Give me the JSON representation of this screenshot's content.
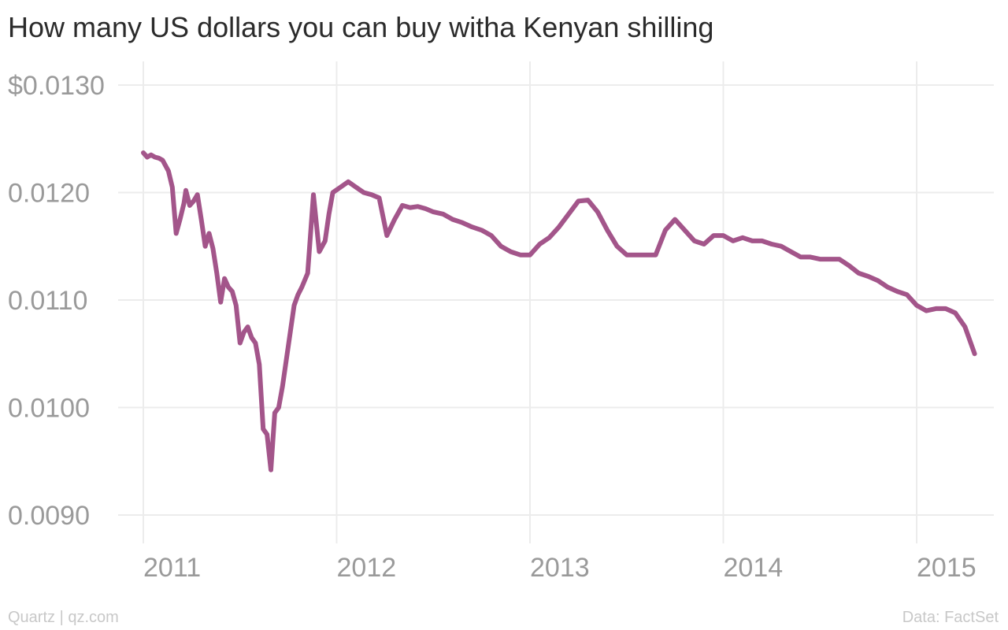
{
  "header": {
    "title": "How many US dollars you can buy witha Kenyan shilling"
  },
  "footer": {
    "source": "Quartz | qz.com",
    "data_credit": "Data: FactSet"
  },
  "colors": {
    "series": "#a3558a",
    "grid": "#ececec",
    "tick_text": "#9a9a9a"
  },
  "chart_data": {
    "type": "line",
    "title": "How many US dollars you can buy witha Kenyan shilling",
    "xlabel": "",
    "ylabel": "",
    "xlim": [
      2011.0,
      2015.3
    ],
    "ylim": [
      0.009,
      0.013
    ],
    "grid": true,
    "legend": "none",
    "y_ticks": [
      0.013,
      0.012,
      0.011,
      0.01,
      0.009
    ],
    "y_tick_labels": [
      "$0.0130",
      "0.0120",
      "0.0110",
      "0.0100",
      "0.0090"
    ],
    "x_ticks": [
      2011,
      2012,
      2013,
      2014,
      2015
    ],
    "x_tick_labels": [
      "2011",
      "2012",
      "2013",
      "2014",
      "2015"
    ],
    "series": [
      {
        "color": "#a3558a",
        "x": [
          2011.0,
          2011.02,
          2011.04,
          2011.06,
          2011.08,
          2011.1,
          2011.13,
          2011.15,
          2011.17,
          2011.19,
          2011.21,
          2011.22,
          2011.24,
          2011.26,
          2011.28,
          2011.3,
          2011.32,
          2011.34,
          2011.36,
          2011.38,
          2011.4,
          2011.42,
          2011.44,
          2011.46,
          2011.48,
          2011.5,
          2011.52,
          2011.54,
          2011.56,
          2011.58,
          2011.6,
          2011.62,
          2011.64,
          2011.66,
          2011.68,
          2011.7,
          2011.72,
          2011.74,
          2011.76,
          2011.78,
          2011.8,
          2011.82,
          2011.85,
          2011.88,
          2011.91,
          2011.94,
          2011.96,
          2011.98,
          2012.02,
          2012.06,
          2012.1,
          2012.14,
          2012.18,
          2012.22,
          2012.26,
          2012.3,
          2012.34,
          2012.38,
          2012.42,
          2012.46,
          2012.5,
          2012.55,
          2012.6,
          2012.65,
          2012.7,
          2012.75,
          2012.8,
          2012.85,
          2012.9,
          2012.95,
          2013.0,
          2013.05,
          2013.1,
          2013.15,
          2013.2,
          2013.25,
          2013.3,
          2013.35,
          2013.4,
          2013.45,
          2013.5,
          2013.55,
          2013.6,
          2013.65,
          2013.7,
          2013.75,
          2013.8,
          2013.85,
          2013.9,
          2013.95,
          2014.0,
          2014.05,
          2014.1,
          2014.15,
          2014.2,
          2014.25,
          2014.3,
          2014.35,
          2014.4,
          2014.45,
          2014.5,
          2014.55,
          2014.6,
          2014.65,
          2014.7,
          2014.75,
          2014.8,
          2014.85,
          2014.9,
          2014.95,
          2015.0,
          2015.05,
          2015.1,
          2015.15,
          2015.2,
          2015.25,
          2015.3
        ],
        "values": [
          0.01237,
          0.01233,
          0.01235,
          0.01233,
          0.01232,
          0.0123,
          0.0122,
          0.01205,
          0.01162,
          0.01175,
          0.0119,
          0.01202,
          0.01188,
          0.01192,
          0.01198,
          0.01175,
          0.0115,
          0.01162,
          0.01148,
          0.01125,
          0.01098,
          0.0112,
          0.01112,
          0.01108,
          0.01095,
          0.0106,
          0.0107,
          0.01075,
          0.01065,
          0.0106,
          0.0104,
          0.0098,
          0.00975,
          0.00942,
          0.00995,
          0.01,
          0.0102,
          0.01045,
          0.0107,
          0.01095,
          0.01105,
          0.01112,
          0.01125,
          0.01198,
          0.01145,
          0.01155,
          0.0118,
          0.012,
          0.01205,
          0.0121,
          0.01205,
          0.012,
          0.01198,
          0.01195,
          0.0116,
          0.01175,
          0.01188,
          0.01186,
          0.01187,
          0.01185,
          0.01182,
          0.0118,
          0.01175,
          0.01172,
          0.01168,
          0.01165,
          0.0116,
          0.0115,
          0.01145,
          0.01142,
          0.01142,
          0.01152,
          0.01158,
          0.01168,
          0.0118,
          0.01192,
          0.01193,
          0.01182,
          0.01165,
          0.0115,
          0.01142,
          0.01142,
          0.01142,
          0.01142,
          0.01165,
          0.01175,
          0.01165,
          0.01155,
          0.01152,
          0.0116,
          0.0116,
          0.01155,
          0.01158,
          0.01155,
          0.01155,
          0.01152,
          0.0115,
          0.01145,
          0.0114,
          0.0114,
          0.01138,
          0.01138,
          0.01138,
          0.01132,
          0.01125,
          0.01122,
          0.01118,
          0.01112,
          0.01108,
          0.01105,
          0.01095,
          0.0109,
          0.01092,
          0.01092,
          0.01088,
          0.01075,
          0.0105
        ]
      }
    ]
  }
}
